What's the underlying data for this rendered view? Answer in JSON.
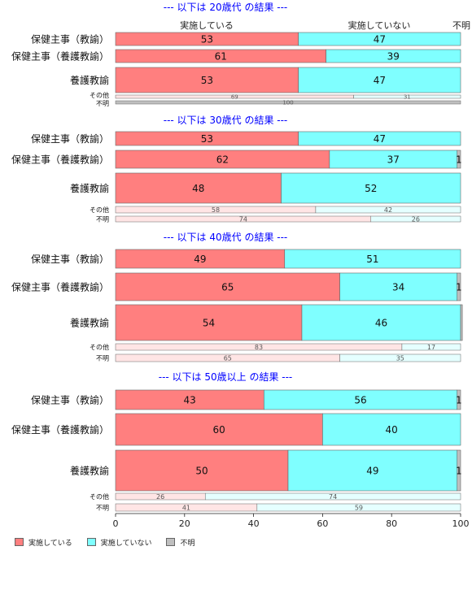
{
  "colors": {
    "yes": "#FF7F7F",
    "no": "#7FFFFF",
    "unknown": "#BFBFBF",
    "yes_light": "#FFE5E5",
    "no_light": "#E5FFFF",
    "title": "#0000FF"
  },
  "legend": [
    "実施している",
    "実施していない",
    "不明"
  ],
  "chart_data": {
    "type": "bar",
    "orientation": "horizontal",
    "stacked": true,
    "xlim": [
      0,
      100
    ],
    "xticks": [
      "0",
      "20",
      "40",
      "60",
      "80",
      "100"
    ],
    "column_headers": [
      "実施している",
      "実施していない",
      "不明"
    ],
    "panels": [
      {
        "title": "--- 以下は 20歳代 の結果 ---",
        "rows": [
          {
            "label": "保健主事（教諭）",
            "values": [
              53,
              47,
              0
            ],
            "labels": [
              "53",
              "47",
              ""
            ]
          },
          {
            "label": "保健主事（養護教諭）",
            "values": [
              61,
              39,
              0
            ],
            "labels": [
              "61",
              "39",
              ""
            ]
          },
          {
            "label": "養護教諭",
            "values": [
              53,
              47,
              0
            ],
            "labels": [
              "53",
              "47",
              ""
            ]
          },
          {
            "label": "その他",
            "values": [
              69,
              31,
              0
            ],
            "labels": [
              "69",
              "31",
              ""
            ]
          },
          {
            "label": "不明",
            "values": [
              0,
              0,
              100
            ],
            "labels": [
              "",
              "",
              "100"
            ]
          }
        ]
      },
      {
        "title": "--- 以下は 30歳代 の結果 ---",
        "rows": [
          {
            "label": "保健主事（教諭）",
            "values": [
              53,
              47,
              0
            ],
            "labels": [
              "53",
              "47",
              ""
            ]
          },
          {
            "label": "保健主事（養護教諭）",
            "values": [
              62,
              37,
              1
            ],
            "labels": [
              "62",
              "37",
              "1"
            ]
          },
          {
            "label": "養護教諭",
            "values": [
              48,
              52,
              0
            ],
            "labels": [
              "48",
              "52",
              ""
            ]
          },
          {
            "label": "その他",
            "values": [
              58,
              42,
              0
            ],
            "labels": [
              "58",
              "42",
              ""
            ]
          },
          {
            "label": "不明",
            "values": [
              74,
              26,
              0
            ],
            "labels": [
              "74",
              "26",
              ""
            ]
          }
        ]
      },
      {
        "title": "--- 以下は 40歳代 の結果 ---",
        "rows": [
          {
            "label": "保健主事（教諭）",
            "values": [
              49,
              51,
              0
            ],
            "labels": [
              "49",
              "51",
              ""
            ]
          },
          {
            "label": "保健主事（養護教諭）",
            "values": [
              65,
              34,
              1
            ],
            "labels": [
              "65",
              "34",
              "1"
            ]
          },
          {
            "label": "養護教諭",
            "values": [
              54,
              46,
              0.5
            ],
            "labels": [
              "54",
              "46",
              ""
            ]
          },
          {
            "label": "その他",
            "values": [
              83,
              17,
              0
            ],
            "labels": [
              "83",
              "17",
              ""
            ]
          },
          {
            "label": "不明",
            "values": [
              65,
              35,
              0
            ],
            "labels": [
              "65",
              "35",
              ""
            ]
          }
        ]
      },
      {
        "title": "--- 以下は 50歳以上 の結果 ---",
        "rows": [
          {
            "label": "保健主事（教諭）",
            "values": [
              43,
              56,
              1
            ],
            "labels": [
              "43",
              "56",
              "1"
            ]
          },
          {
            "label": "保健主事（養護教諭）",
            "values": [
              60,
              40,
              0
            ],
            "labels": [
              "60",
              "40",
              ""
            ]
          },
          {
            "label": "養護教諭",
            "values": [
              50,
              49,
              1
            ],
            "labels": [
              "50",
              "49",
              "1"
            ]
          },
          {
            "label": "その他",
            "values": [
              26,
              74,
              0
            ],
            "labels": [
              "26",
              "74",
              ""
            ]
          },
          {
            "label": "不明",
            "values": [
              41,
              59,
              0
            ],
            "labels": [
              "41",
              "59",
              ""
            ]
          }
        ]
      }
    ]
  }
}
